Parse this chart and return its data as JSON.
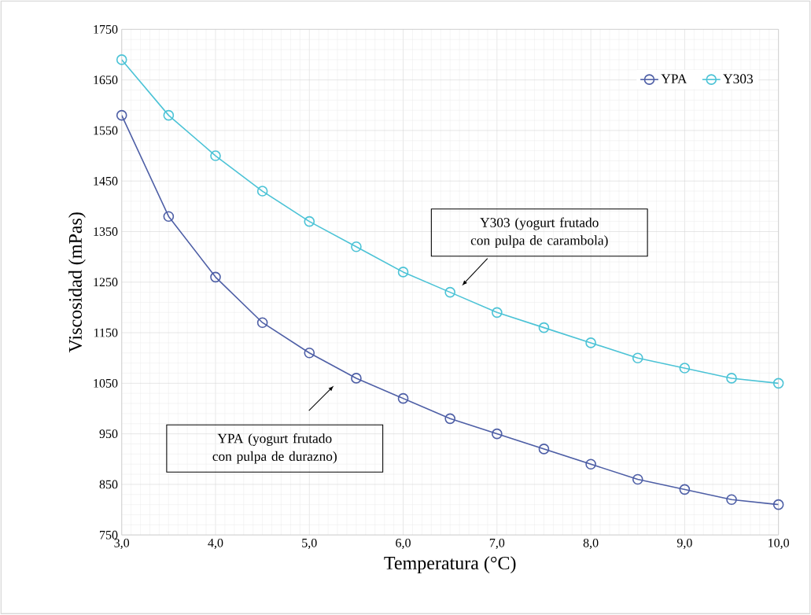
{
  "chart_data": {
    "type": "line",
    "xlabel": "Temperatura (°C)",
    "ylabel": "Viscosidad (mPas)",
    "x": [
      3.0,
      3.5,
      4.0,
      4.5,
      5.0,
      5.5,
      6.0,
      6.5,
      7.0,
      7.5,
      8.0,
      8.5,
      9.0,
      9.5,
      10.0
    ],
    "series": [
      {
        "name": "YPA",
        "color": "#4e5fa6",
        "values": [
          1580,
          1380,
          1260,
          1170,
          1110,
          1060,
          1020,
          980,
          950,
          920,
          890,
          860,
          840,
          820,
          810
        ]
      },
      {
        "name": "Y303",
        "color": "#4cc3d6",
        "values": [
          1690,
          1580,
          1500,
          1430,
          1370,
          1320,
          1270,
          1230,
          1190,
          1160,
          1130,
          1100,
          1080,
          1060,
          1050
        ]
      }
    ],
    "xlim": [
      3.0,
      10.0
    ],
    "xticks": [
      {
        "value": 3,
        "label": "3,0"
      },
      {
        "value": 4,
        "label": "4,0"
      },
      {
        "value": 5,
        "label": "5,0"
      },
      {
        "value": 6,
        "label": "6,0"
      },
      {
        "value": 7,
        "label": "7,0"
      },
      {
        "value": 8,
        "label": "8,0"
      },
      {
        "value": 9,
        "label": "9,0"
      },
      {
        "value": 10,
        "label": "10,0"
      }
    ],
    "ylim": [
      750,
      1750
    ],
    "yticks": [
      750,
      850,
      950,
      1050,
      1150,
      1250,
      1350,
      1450,
      1550,
      1650,
      1750
    ],
    "grid": true,
    "legend": "top right",
    "marker": "circle",
    "line_style": "solid",
    "annotations": [
      "Y303 (yogurt frutado con pulpa de carambola)",
      "YPA (yogurt frutado con pulpa de durazno)"
    ]
  }
}
